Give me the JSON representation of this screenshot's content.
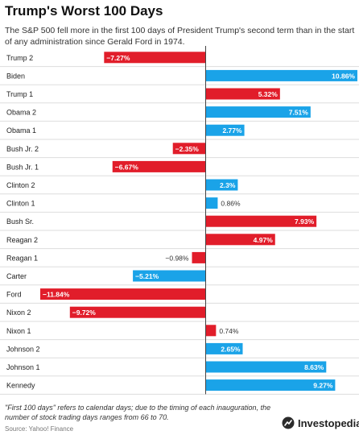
{
  "header": {
    "title": "Trump's Worst 100 Days",
    "subtitle": "The S&P 500 fell more in the first 100 days of President Trump's second term than in the start of any administration since Gerald Ford in 1974."
  },
  "footer": {
    "note": "\"First 100 days\" refers to calendar days; due to the timing of each inauguration, the number of stock trading days ranges from 66 to 70.",
    "source": "Source: Yahoo! Finance",
    "brand": "Investopedia"
  },
  "colors": {
    "positive": "#1aa3e8",
    "negative": "#e11d2a",
    "row_line": "#dddddd",
    "zero_line": "#444444"
  },
  "chart_data": {
    "type": "bar",
    "orientation": "horizontal",
    "categories": [
      "Trump 2",
      "Biden",
      "Trump 1",
      "Obama 2",
      "Obama 1",
      "Bush Jr. 2",
      "Bush Jr. 1",
      "Clinton 2",
      "Clinton 1",
      "Bush Sr.",
      "Reagan 2",
      "Reagan 1",
      "Carter",
      "Ford",
      "Nixon 2",
      "Nixon 1",
      "Johnson 2",
      "Johnson 1",
      "Kennedy"
    ],
    "values": [
      -7.27,
      10.86,
      5.32,
      7.51,
      2.77,
      -2.35,
      -6.67,
      2.3,
      0.86,
      7.93,
      4.97,
      -0.98,
      -5.21,
      -11.84,
      -9.72,
      0.74,
      2.65,
      8.63,
      9.27
    ],
    "labels": [
      "−7.27%",
      "10.86%",
      "5.32%",
      "7.51%",
      "2.77%",
      "−2.35%",
      "−6.67%",
      "2.3%",
      "0.86%",
      "7.93%",
      "4.97%",
      "−0.98%",
      "−5.21%",
      "−11.84%",
      "−9.72%",
      "0.74%",
      "2.65%",
      "8.63%",
      "9.27%"
    ],
    "highlight": [
      "Trump 2",
      "Trump 1",
      "Bush Jr. 2",
      "Bush Jr. 1",
      "Bush Sr.",
      "Reagan 2",
      "Reagan 1",
      "Ford",
      "Nixon 2",
      "Nixon 1"
    ],
    "xlim": [
      -11.84,
      10.86
    ],
    "grid": false,
    "legend": "none"
  }
}
